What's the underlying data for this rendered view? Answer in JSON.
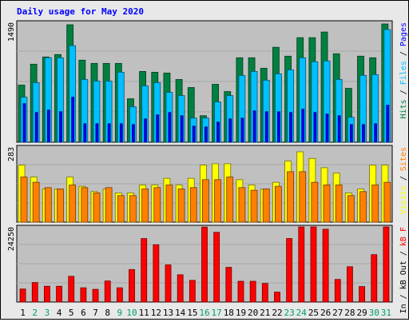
{
  "chart_data": [
    {
      "type": "bar",
      "title": "Daily usage for May 2020",
      "categories": [
        "1",
        "2",
        "3",
        "4",
        "5",
        "6",
        "7",
        "8",
        "9",
        "10",
        "11",
        "12",
        "13",
        "14",
        "15",
        "16",
        "17",
        "18",
        "19",
        "20",
        "21",
        "22",
        "23",
        "24",
        "25",
        "26",
        "27",
        "28",
        "29",
        "30",
        "31"
      ],
      "ylim": [
        0,
        1490
      ],
      "ylabel_tick": "1490",
      "legend": [
        "Hits",
        "Files",
        "Pages"
      ],
      "series": [
        {
          "name": "Hits",
          "color": "#008040",
          "values": [
            710,
            970,
            1060,
            1090,
            1460,
            1020,
            980,
            980,
            980,
            540,
            880,
            870,
            860,
            780,
            680,
            330,
            720,
            630,
            1050,
            1050,
            920,
            1180,
            1070,
            1300,
            1300,
            1370,
            1100,
            670,
            1070,
            1050,
            1470
          ]
        },
        {
          "name": "Files",
          "color": "#00c0ff",
          "values": [
            560,
            740,
            1050,
            1050,
            1200,
            780,
            760,
            760,
            870,
            440,
            700,
            740,
            620,
            580,
            300,
            300,
            500,
            580,
            830,
            880,
            770,
            850,
            900,
            1050,
            1000,
            1010,
            780,
            310,
            830,
            840,
            1400
          ]
        },
        {
          "name": "Pages",
          "color": "#0000ff",
          "values": [
            480,
            370,
            400,
            380,
            560,
            230,
            230,
            230,
            230,
            220,
            290,
            340,
            370,
            330,
            200,
            190,
            250,
            290,
            300,
            390,
            380,
            380,
            370,
            410,
            370,
            350,
            330,
            220,
            220,
            230,
            460
          ]
        }
      ]
    },
    {
      "type": "bar",
      "ylim": [
        0,
        283
      ],
      "ylabel_tick": "283",
      "legend": [
        "Visits",
        "Sites"
      ],
      "series": [
        {
          "name": "Visits",
          "color": "#ffff00",
          "values": [
            215,
            170,
            125,
            125,
            170,
            135,
            115,
            125,
            110,
            110,
            140,
            140,
            165,
            140,
            165,
            215,
            220,
            220,
            160,
            140,
            125,
            150,
            230,
            265,
            240,
            205,
            185,
            110,
            125,
            215,
            215
          ]
        },
        {
          "name": "Sites",
          "color": "#ff8000",
          "values": [
            170,
            150,
            130,
            125,
            140,
            130,
            110,
            130,
            100,
            100,
            125,
            130,
            140,
            125,
            130,
            160,
            160,
            170,
            130,
            120,
            125,
            135,
            190,
            190,
            150,
            140,
            140,
            100,
            115,
            140,
            150
          ]
        }
      ]
    },
    {
      "type": "bar",
      "ylim": [
        0,
        24250
      ],
      "ylabel_tick": "24250",
      "legend": [
        "kB In",
        "kB Out",
        "kB F"
      ],
      "series": [
        {
          "name": "kB F",
          "color": "#ff0000",
          "values": [
            4200,
            6300,
            5100,
            5100,
            8300,
            4600,
            4100,
            6800,
            4600,
            10500,
            20500,
            18500,
            12000,
            8800,
            7000,
            24200,
            22500,
            11200,
            6700,
            6700,
            6000,
            3200,
            20500,
            24500,
            24500,
            23500,
            7300,
            11400,
            5000,
            15300,
            25000
          ]
        }
      ]
    }
  ]
}
